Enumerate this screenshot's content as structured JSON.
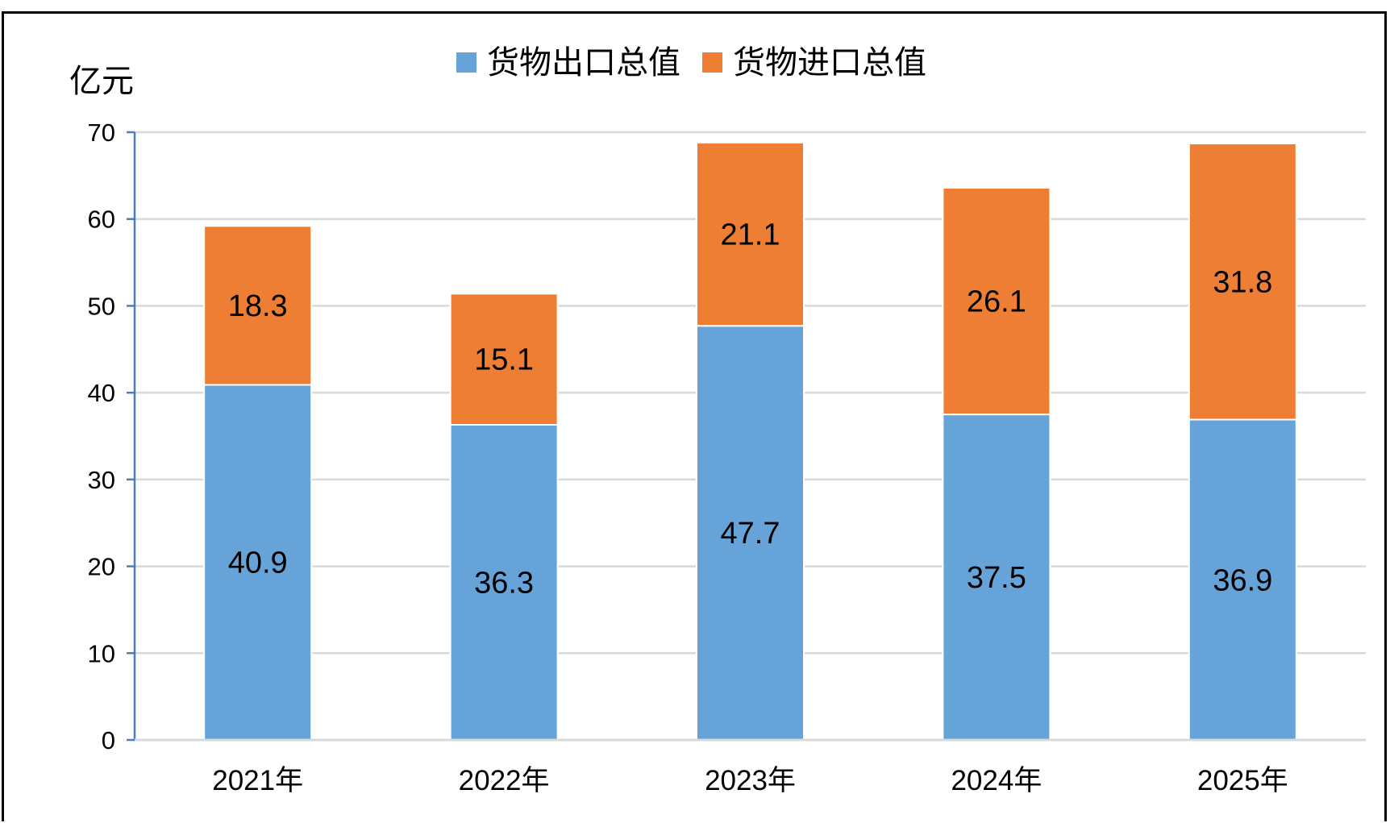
{
  "chart_data": {
    "type": "bar",
    "stacked": true,
    "title": "",
    "ylabel": "亿元",
    "xlabel": "",
    "categories": [
      "2021年",
      "2022年",
      "2023年",
      "2024年",
      "2025年"
    ],
    "series": [
      {
        "name": "货物出口总值",
        "color": "#65A3D8",
        "values": [
          40.9,
          36.3,
          47.7,
          37.5,
          36.9
        ]
      },
      {
        "name": "货物进口总值",
        "color": "#EE7E33",
        "values": [
          18.3,
          15.1,
          21.1,
          26.1,
          31.8
        ]
      }
    ],
    "ylim": [
      0,
      70
    ],
    "yticks": [
      0,
      10,
      20,
      30,
      40,
      50,
      60,
      70
    ],
    "grid": true,
    "legend_position": "top-center"
  }
}
